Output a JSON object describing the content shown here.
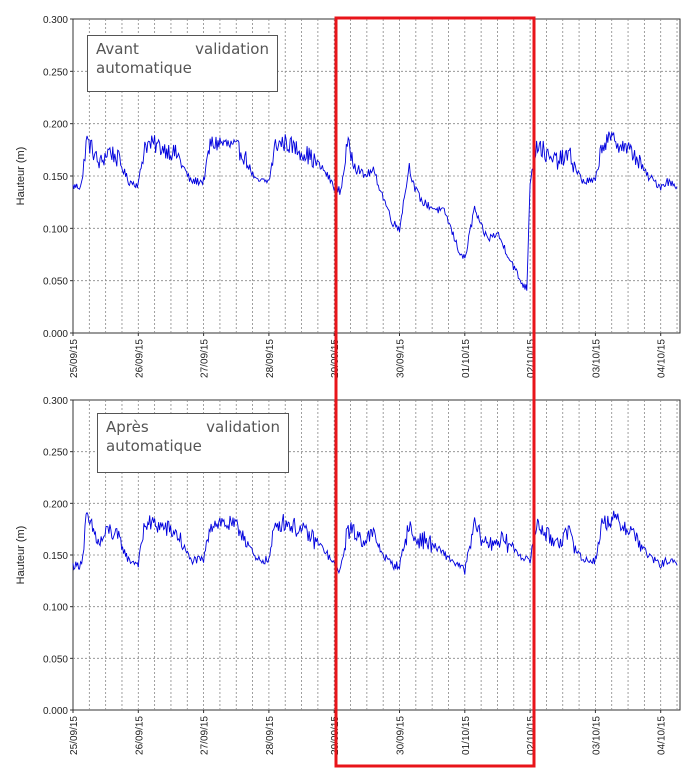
{
  "chart_data": [
    {
      "type": "line",
      "ylabel": "Hauteur (m)",
      "ylim": [
        0,
        0.3
      ],
      "yticks": [
        "0.000",
        "0.050",
        "0.100",
        "0.150",
        "0.200",
        "0.250",
        "0.300"
      ],
      "xticks": [
        "25/09/15",
        "26/09/15",
        "27/09/15",
        "28/09/15",
        "29/09/15",
        "30/09/15",
        "01/10/15",
        "02/10/15",
        "03/10/15",
        "04/10/15"
      ],
      "x_unit": "day index from 25/09/15",
      "grid": true,
      "annotation": {
        "word1": "Avant",
        "word2": "validation",
        "word3": "automatique"
      },
      "series_color": "#0000dd",
      "series": [
        {
          "x": [
            0,
            0.1,
            0.15,
            0.2,
            0.3,
            0.4,
            0.55,
            0.7,
            0.85,
            1.0,
            1.1,
            1.25,
            1.45,
            1.6,
            1.8,
            2.0,
            2.1,
            2.25,
            2.45,
            2.6,
            2.8,
            3.0,
            3.1,
            3.25,
            3.45,
            3.6,
            3.85,
            4.0,
            4.1,
            4.2,
            4.3,
            4.45,
            4.6,
            4.75,
            4.9,
            5.0,
            5.15,
            5.22,
            5.35,
            5.5,
            5.7,
            5.9,
            6.0,
            6.15,
            6.22,
            6.35,
            6.5,
            6.7,
            6.85,
            6.95,
            7.0,
            7.1,
            7.2,
            7.3,
            7.45,
            7.6,
            7.8,
            8.0,
            8.1,
            8.25,
            8.45,
            8.6,
            8.8,
            9.0,
            9.1,
            9.25
          ],
          "values": [
            0.14,
            0.14,
            0.148,
            0.185,
            0.175,
            0.16,
            0.175,
            0.165,
            0.145,
            0.142,
            0.18,
            0.18,
            0.175,
            0.17,
            0.145,
            0.145,
            0.18,
            0.182,
            0.178,
            0.172,
            0.145,
            0.145,
            0.18,
            0.182,
            0.175,
            0.17,
            0.155,
            0.14,
            0.135,
            0.18,
            0.165,
            0.15,
            0.155,
            0.13,
            0.105,
            0.1,
            0.16,
            0.14,
            0.125,
            0.12,
            0.115,
            0.08,
            0.07,
            0.12,
            0.105,
            0.09,
            0.095,
            0.07,
            0.05,
            0.042,
            0.145,
            0.18,
            0.175,
            0.165,
            0.165,
            0.17,
            0.145,
            0.145,
            0.18,
            0.185,
            0.178,
            0.17,
            0.15,
            0.14,
            0.145,
            0.14
          ]
        }
      ]
    },
    {
      "type": "line",
      "ylabel": "Hauteur (m)",
      "ylim": [
        0,
        0.3
      ],
      "yticks": [
        "0.000",
        "0.050",
        "0.100",
        "0.150",
        "0.200",
        "0.250",
        "0.300"
      ],
      "xticks": [
        "25/09/15",
        "26/09/15",
        "27/09/15",
        "28/09/15",
        "29/09/15",
        "30/09/15",
        "01/10/15",
        "02/10/15",
        "03/10/15",
        "04/10/15"
      ],
      "x_unit": "day index from 25/09/15",
      "grid": true,
      "annotation": {
        "word1": "Après",
        "word2": "validation",
        "word3": "automatique"
      },
      "series_color": "#0000dd",
      "series": [
        {
          "x": [
            0,
            0.1,
            0.15,
            0.2,
            0.3,
            0.4,
            0.55,
            0.7,
            0.85,
            1.0,
            1.1,
            1.25,
            1.45,
            1.6,
            1.8,
            2.0,
            2.1,
            2.25,
            2.45,
            2.6,
            2.8,
            3.0,
            3.1,
            3.25,
            3.45,
            3.6,
            3.85,
            4.0,
            4.1,
            4.2,
            4.3,
            4.45,
            4.6,
            4.75,
            4.9,
            5.0,
            5.15,
            5.22,
            5.35,
            5.5,
            5.7,
            5.9,
            6.0,
            6.15,
            6.22,
            6.35,
            6.5,
            6.7,
            6.85,
            6.95,
            7.0,
            7.1,
            7.2,
            7.3,
            7.45,
            7.6,
            7.8,
            8.0,
            8.1,
            8.25,
            8.45,
            8.6,
            8.8,
            9.0,
            9.1,
            9.25
          ],
          "values": [
            0.14,
            0.14,
            0.148,
            0.185,
            0.175,
            0.16,
            0.175,
            0.165,
            0.145,
            0.142,
            0.18,
            0.18,
            0.175,
            0.17,
            0.145,
            0.145,
            0.18,
            0.182,
            0.178,
            0.172,
            0.145,
            0.145,
            0.18,
            0.182,
            0.175,
            0.17,
            0.155,
            0.14,
            0.135,
            0.175,
            0.172,
            0.165,
            0.17,
            0.15,
            0.14,
            0.14,
            0.18,
            0.165,
            0.165,
            0.16,
            0.15,
            0.14,
            0.135,
            0.18,
            0.17,
            0.16,
            0.165,
            0.16,
            0.15,
            0.145,
            0.145,
            0.18,
            0.175,
            0.165,
            0.165,
            0.17,
            0.145,
            0.145,
            0.18,
            0.185,
            0.178,
            0.17,
            0.15,
            0.14,
            0.145,
            0.14
          ]
        }
      ]
    }
  ]
}
